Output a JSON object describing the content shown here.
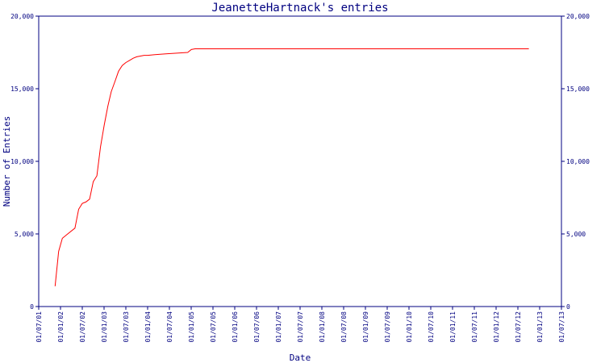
{
  "chart_data": {
    "type": "line",
    "title": "JeanetteHartnack's entries",
    "xlabel": "Date",
    "ylabel": "Number of Entries",
    "x_tick_labels": [
      "01/07/01",
      "01/01/02",
      "01/07/02",
      "01/01/03",
      "01/07/03",
      "01/01/04",
      "01/07/04",
      "01/01/05",
      "01/07/05",
      "01/01/06",
      "01/07/06",
      "01/01/07",
      "01/07/07",
      "01/01/08",
      "01/07/08",
      "01/01/09",
      "01/07/09",
      "01/01/10",
      "01/07/10",
      "01/01/11",
      "01/07/11",
      "01/01/12",
      "01/07/12",
      "01/01/13",
      "01/07/13"
    ],
    "y_ticks": [
      0,
      5000,
      10000,
      15000,
      20000
    ],
    "y_tick_labels": [
      "0",
      "5,000",
      "10,000",
      "15,000",
      "20,000"
    ],
    "ylim": [
      0,
      20000
    ],
    "grid": false,
    "colors": {
      "axis": "#000080",
      "line": "#ff0000",
      "text": "#000080",
      "background": "#ffffff"
    },
    "series": [
      {
        "x": [
          "2001-11-15",
          "2001-12-15",
          "2002-01-15",
          "2002-03-01",
          "2002-05-01",
          "2002-06-01",
          "2002-07-01",
          "2002-08-01",
          "2002-09-01",
          "2002-10-01",
          "2002-11-01",
          "2002-12-01",
          "2003-01-01",
          "2003-02-01",
          "2003-03-01",
          "2003-04-01",
          "2003-05-01",
          "2003-06-01",
          "2003-07-01",
          "2003-08-01",
          "2003-09-01",
          "2003-10-01",
          "2003-11-01",
          "2003-12-01",
          "2004-01-01",
          "2004-03-01",
          "2004-06-01",
          "2004-09-01",
          "2004-12-01",
          "2005-01-01",
          "2005-02-01",
          "2005-07-01",
          "2006-01-01",
          "2007-01-01",
          "2008-01-01",
          "2009-01-01",
          "2010-01-01",
          "2011-01-01",
          "2012-01-01",
          "2012-10-01"
        ],
        "y": [
          1400,
          3800,
          4700,
          5000,
          5400,
          6700,
          7100,
          7200,
          7400,
          8600,
          9000,
          11000,
          12500,
          13800,
          14800,
          15500,
          16200,
          16600,
          16800,
          16950,
          17100,
          17200,
          17250,
          17300,
          17300,
          17350,
          17400,
          17450,
          17500,
          17700,
          17750,
          17750,
          17750,
          17750,
          17750,
          17750,
          17750,
          17750,
          17750,
          17750
        ]
      }
    ]
  }
}
